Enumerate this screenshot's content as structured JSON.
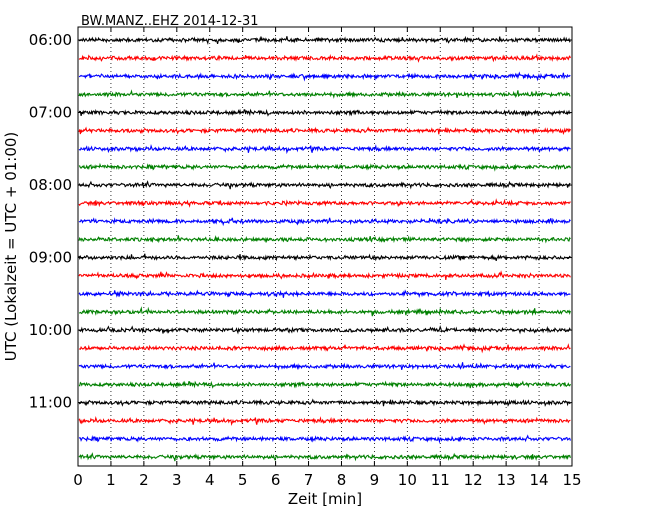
{
  "chart_data": {
    "type": "line",
    "title": "BW.MANZ..EHZ 2014-12-31",
    "xlabel": "Zeit  [min]",
    "ylabel": "UTC (Lokalzeit = UTC + 01:00)",
    "xlim": [
      0,
      15
    ],
    "x_ticks": [
      "0",
      "1",
      "2",
      "3",
      "4",
      "5",
      "6",
      "7",
      "8",
      "9",
      "10",
      "11",
      "12",
      "13",
      "14",
      "15"
    ],
    "y_ticks": [
      "06:00",
      "07:00",
      "08:00",
      "09:00",
      "10:00",
      "11:00"
    ],
    "start_time": "06:00",
    "trace_interval_minutes": 15,
    "trace_count": 24,
    "trace_colors": [
      "#000000",
      "#ff0000",
      "#0000ff",
      "#008000"
    ],
    "grid": "vertical dotted at each minute",
    "series": [
      {
        "start": "06:00",
        "color": "#000000"
      },
      {
        "start": "06:15",
        "color": "#ff0000"
      },
      {
        "start": "06:30",
        "color": "#0000ff"
      },
      {
        "start": "06:45",
        "color": "#008000"
      },
      {
        "start": "07:00",
        "color": "#000000"
      },
      {
        "start": "07:15",
        "color": "#ff0000"
      },
      {
        "start": "07:30",
        "color": "#0000ff"
      },
      {
        "start": "07:45",
        "color": "#008000"
      },
      {
        "start": "08:00",
        "color": "#000000"
      },
      {
        "start": "08:15",
        "color": "#ff0000"
      },
      {
        "start": "08:30",
        "color": "#0000ff"
      },
      {
        "start": "08:45",
        "color": "#008000"
      },
      {
        "start": "09:00",
        "color": "#000000"
      },
      {
        "start": "09:15",
        "color": "#ff0000"
      },
      {
        "start": "09:30",
        "color": "#0000ff"
      },
      {
        "start": "09:45",
        "color": "#008000"
      },
      {
        "start": "10:00",
        "color": "#000000"
      },
      {
        "start": "10:15",
        "color": "#ff0000"
      },
      {
        "start": "10:30",
        "color": "#0000ff"
      },
      {
        "start": "10:45",
        "color": "#008000"
      },
      {
        "start": "11:00",
        "color": "#000000"
      },
      {
        "start": "11:15",
        "color": "#ff0000"
      },
      {
        "start": "11:30",
        "color": "#0000ff"
      },
      {
        "start": "11:45",
        "color": "#008000"
      }
    ]
  }
}
